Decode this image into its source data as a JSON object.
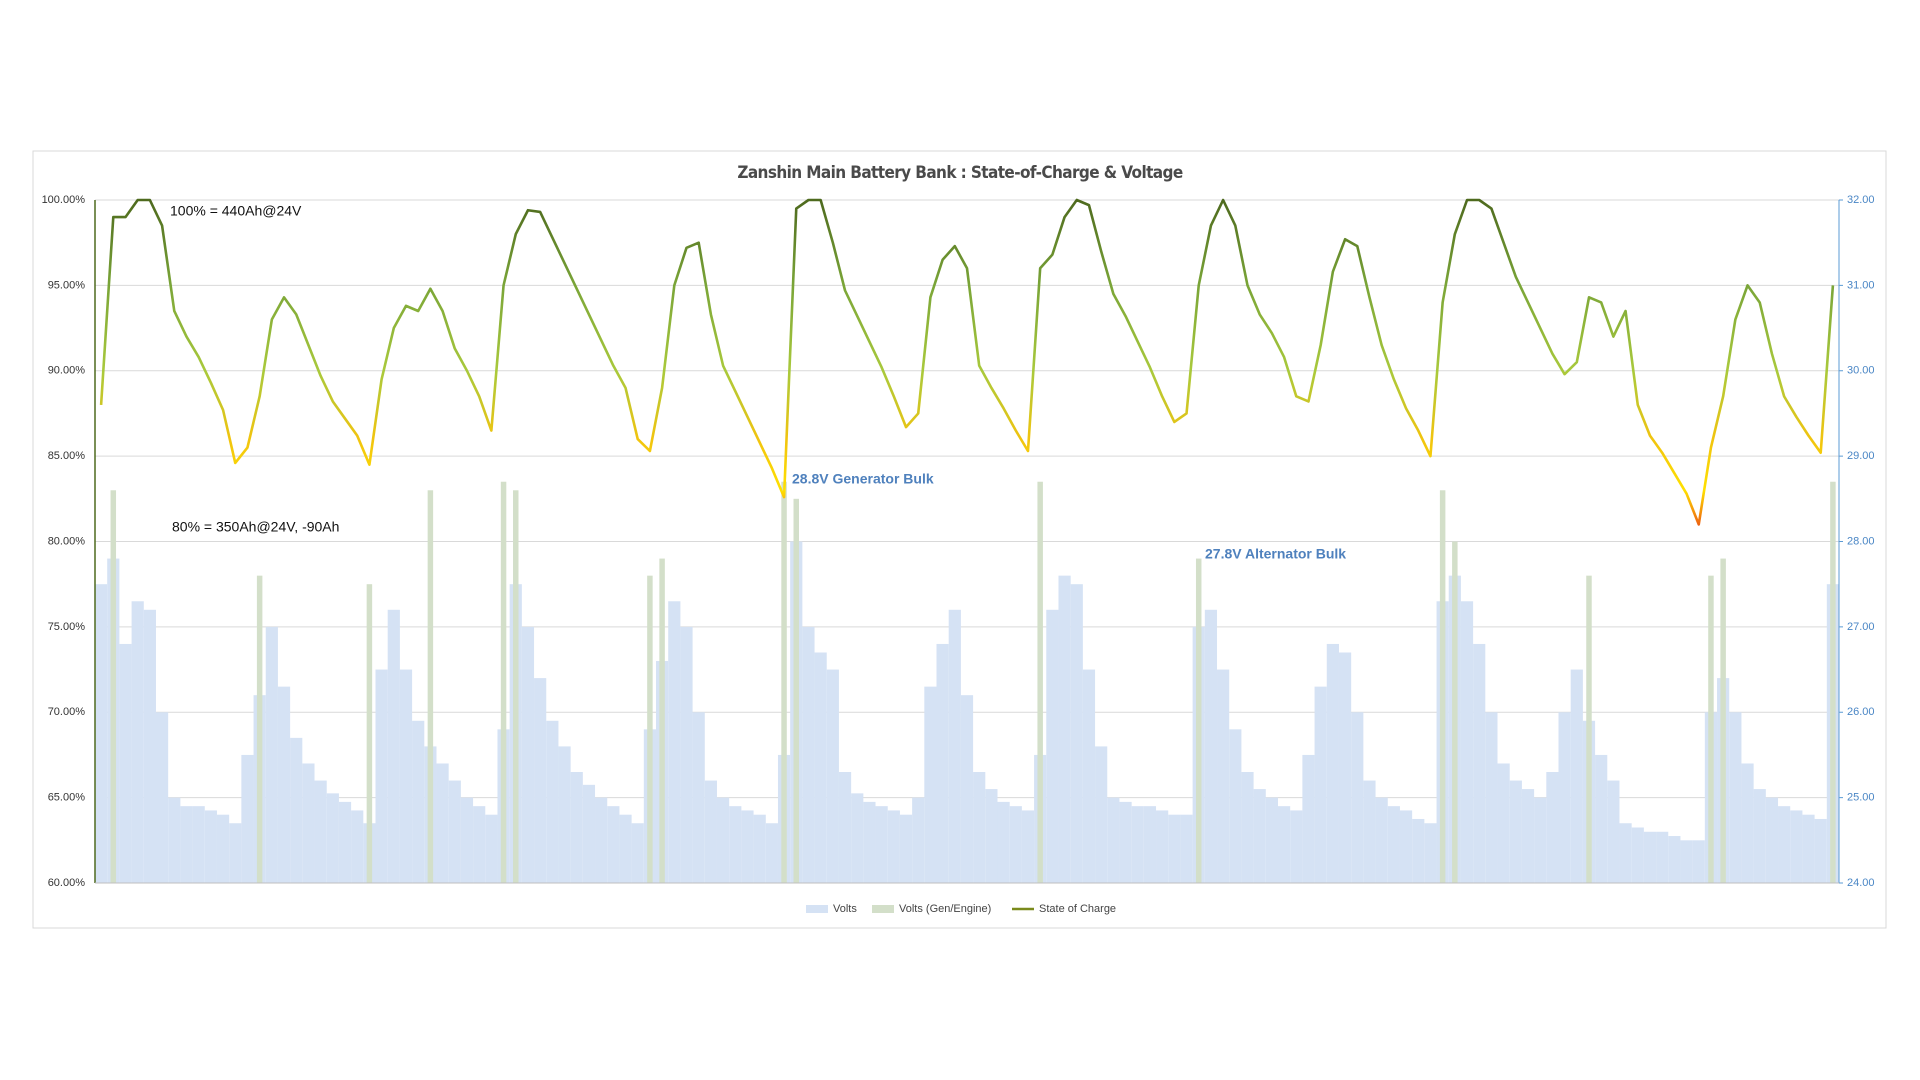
{
  "chart_data": {
    "type": "bar-line",
    "title": "Zanshin Main Battery Bank : State-of-Charge & Voltage",
    "annotations": [
      "100% = 440Ah@24V",
      "80% = 350Ah@24V, -90Ah",
      "28.8V Generator Bulk",
      "27.8V Alternator Bulk"
    ],
    "ylim": [
      60,
      100
    ],
    "yticks": [
      {
        "value": 60,
        "label": "60.00%"
      },
      {
        "value": 65,
        "label": "65.00%"
      },
      {
        "value": 70,
        "label": "70.00%"
      },
      {
        "value": 75,
        "label": "75.00%"
      },
      {
        "value": 80,
        "label": "80.00%"
      },
      {
        "value": 85,
        "label": "85.00%"
      },
      {
        "value": 90,
        "label": "90.00%"
      },
      {
        "value": 95,
        "label": "95.00%"
      },
      {
        "value": 100,
        "label": "100.00%"
      }
    ],
    "y2lim": [
      24,
      32
    ],
    "y2ticks": [
      {
        "value": 24,
        "label": "24.00"
      },
      {
        "value": 25,
        "label": "25.00"
      },
      {
        "value": 26,
        "label": "26.00"
      },
      {
        "value": 27,
        "label": "27.00"
      },
      {
        "value": 28,
        "label": "28.00"
      },
      {
        "value": 29,
        "label": "29.00"
      },
      {
        "value": 30,
        "label": "30.00"
      },
      {
        "value": 31,
        "label": "31.00"
      },
      {
        "value": 32,
        "label": "32.00"
      }
    ],
    "grid": true,
    "legend": "bottom",
    "series": [
      {
        "name": "Volts",
        "type": "bar",
        "axis": "y2",
        "color": "#d5e2f4",
        "values": [
          27.5,
          27.8,
          26.8,
          27.3,
          27.2,
          26.0,
          25.0,
          24.9,
          24.9,
          24.85,
          24.8,
          24.7,
          25.5,
          26.2,
          27.0,
          26.3,
          25.7,
          25.4,
          25.2,
          25.05,
          24.95,
          24.85,
          24.7,
          26.5,
          27.2,
          26.5,
          25.9,
          25.6,
          25.4,
          25.2,
          25.0,
          24.9,
          24.8,
          25.8,
          27.5,
          27.0,
          26.4,
          25.9,
          25.6,
          25.3,
          25.15,
          25.0,
          24.9,
          24.8,
          24.7,
          25.8,
          26.6,
          27.3,
          27.0,
          26.0,
          25.2,
          25.0,
          24.9,
          24.85,
          24.8,
          24.7,
          25.5,
          28.0,
          27.0,
          26.7,
          26.5,
          25.3,
          25.05,
          24.95,
          24.9,
          24.85,
          24.8,
          25.0,
          26.3,
          26.8,
          27.2,
          26.2,
          25.3,
          25.1,
          24.95,
          24.9,
          24.85,
          25.5,
          27.2,
          27.6,
          27.5,
          26.5,
          25.6,
          25.0,
          24.95,
          24.9,
          24.9,
          24.85,
          24.8,
          24.8,
          27.0,
          27.2,
          26.5,
          25.8,
          25.3,
          25.1,
          25.0,
          24.9,
          24.85,
          25.5,
          26.3,
          26.8,
          26.7,
          26.0,
          25.2,
          25.0,
          24.9,
          24.85,
          24.75,
          24.7,
          27.3,
          27.6,
          27.3,
          26.8,
          26.0,
          25.4,
          25.2,
          25.1,
          25.0,
          25.3,
          26.0,
          26.5,
          25.9,
          25.5,
          25.2,
          24.7,
          24.65,
          24.6,
          24.6,
          24.55,
          24.5,
          24.5,
          26.0,
          26.4,
          26.0,
          25.4,
          25.1,
          25.0,
          24.9,
          24.85,
          24.8,
          24.75,
          27.5
        ]
      },
      {
        "name": "Volts (Gen/Engine)",
        "type": "bar",
        "axis": "y2",
        "color": "#d3dfc9",
        "values": [
          null,
          28.6,
          null,
          null,
          null,
          null,
          null,
          null,
          null,
          null,
          null,
          null,
          null,
          27.6,
          null,
          null,
          null,
          null,
          null,
          null,
          null,
          null,
          27.5,
          null,
          null,
          null,
          null,
          28.6,
          null,
          null,
          null,
          null,
          null,
          28.7,
          28.6,
          null,
          null,
          null,
          null,
          null,
          null,
          null,
          null,
          null,
          null,
          27.6,
          27.8,
          null,
          null,
          null,
          null,
          null,
          null,
          null,
          null,
          null,
          28.7,
          28.5,
          null,
          null,
          null,
          null,
          null,
          null,
          null,
          null,
          null,
          null,
          null,
          null,
          null,
          null,
          null,
          null,
          null,
          null,
          null,
          28.7,
          null,
          null,
          null,
          null,
          null,
          null,
          null,
          null,
          null,
          null,
          null,
          null,
          27.8,
          null,
          null,
          null,
          null,
          null,
          null,
          null,
          null,
          null,
          null,
          null,
          null,
          null,
          null,
          null,
          null,
          null,
          null,
          null,
          28.6,
          28.0,
          null,
          null,
          null,
          null,
          null,
          null,
          null,
          null,
          null,
          null,
          27.6,
          null,
          null,
          null,
          null,
          null,
          null,
          null,
          null,
          null,
          27.6,
          27.8,
          null,
          null,
          null,
          null,
          null,
          null,
          null,
          null,
          28.7
        ]
      },
      {
        "name": "State of Charge",
        "type": "line",
        "color": "#7a8a1c",
        "gradient": [
          {
            "value": 80,
            "color": "#e5261a"
          },
          {
            "value": 83,
            "color": "#ffe000"
          },
          {
            "value": 86,
            "color": "#f1c40f"
          },
          {
            "value": 90,
            "color": "#a9c93c"
          },
          {
            "value": 95,
            "color": "#7aa538"
          },
          {
            "value": 100,
            "color": "#4e6a1e"
          }
        ],
        "values": [
          88,
          99,
          99,
          100,
          100,
          98.5,
          93.5,
          92,
          90.8,
          89.3,
          87.7,
          84.6,
          85.5,
          88.5,
          93,
          94.3,
          93.3,
          91.5,
          89.7,
          88.2,
          87.2,
          86.2,
          84.5,
          89.5,
          92.5,
          93.8,
          93.5,
          94.8,
          93.5,
          91.3,
          90,
          88.5,
          86.5,
          95,
          98,
          99.4,
          99.3,
          97.8,
          96.3,
          94.8,
          93.3,
          91.8,
          90.3,
          89,
          86,
          85.3,
          89,
          95,
          97.2,
          97.5,
          93.3,
          90.3,
          88.8,
          87.3,
          85.8,
          84.3,
          82.6,
          99.5,
          100,
          100,
          97.5,
          94.7,
          93.2,
          91.7,
          90.2,
          88.5,
          86.7,
          87.5,
          94.3,
          96.5,
          97.3,
          96,
          90.3,
          89,
          87.8,
          86.5,
          85.3,
          96,
          96.8,
          99,
          100,
          99.7,
          97,
          94.5,
          93.2,
          91.7,
          90.2,
          88.5,
          87,
          87.5,
          95,
          98.5,
          100,
          98.5,
          95,
          93.3,
          92.2,
          90.8,
          88.5,
          88.2,
          91.5,
          95.8,
          97.7,
          97.3,
          94.3,
          91.5,
          89.5,
          87.8,
          86.5,
          85,
          94,
          98,
          100,
          100,
          99.5,
          97.5,
          95.5,
          94,
          92.5,
          91,
          89.8,
          90.5,
          94.3,
          94,
          92,
          93.5,
          88,
          86.2,
          85.2,
          84,
          82.8,
          81,
          85.5,
          88.5,
          93,
          95,
          94,
          91,
          88.5,
          87.3,
          86.2,
          85.2,
          95
        ]
      }
    ]
  }
}
